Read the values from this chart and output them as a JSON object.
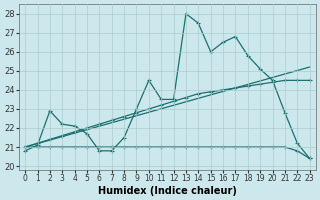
{
  "xlabel": "Humidex (Indice chaleur)",
  "bg_color": "#cce8ec",
  "grid_color": "#aacccc",
  "line_color": "#1a7070",
  "x_ticks": [
    0,
    1,
    2,
    3,
    4,
    5,
    6,
    7,
    8,
    9,
    10,
    11,
    12,
    13,
    14,
    15,
    16,
    17,
    18,
    19,
    20,
    21,
    22,
    23
  ],
  "ylim": [
    19.8,
    28.5
  ],
  "xlim": [
    -0.5,
    23.5
  ],
  "y_ticks": [
    20,
    21,
    22,
    23,
    24,
    25,
    26,
    27,
    28
  ],
  "series1_x": [
    0,
    1,
    2,
    3,
    4,
    5,
    6,
    7,
    8,
    9,
    10,
    11,
    12,
    13,
    14,
    15,
    16,
    17,
    18,
    19,
    20,
    21,
    22,
    23
  ],
  "series1_y": [
    20.8,
    21.1,
    22.9,
    22.2,
    22.1,
    21.7,
    20.8,
    20.8,
    21.5,
    23.0,
    24.5,
    23.5,
    23.5,
    28.0,
    27.5,
    26.0,
    26.5,
    26.8,
    25.8,
    25.1,
    24.5,
    22.8,
    21.2,
    20.4
  ],
  "series2_x": [
    0,
    1,
    2,
    3,
    4,
    5,
    6,
    7,
    8,
    9,
    10,
    11,
    12,
    13,
    14,
    15,
    16,
    17,
    18,
    19,
    20,
    21,
    22,
    23
  ],
  "series2_y": [
    21.0,
    21.0,
    21.0,
    21.0,
    21.0,
    21.0,
    21.0,
    21.0,
    21.0,
    21.0,
    21.0,
    21.0,
    21.0,
    21.0,
    21.0,
    21.0,
    21.0,
    21.0,
    21.0,
    21.0,
    21.0,
    21.0,
    20.8,
    20.4
  ],
  "series3_x": [
    0,
    23
  ],
  "series3_y": [
    21.0,
    25.2
  ],
  "series4_x": [
    0,
    1,
    2,
    3,
    4,
    5,
    6,
    7,
    8,
    9,
    10,
    11,
    12,
    13,
    14,
    15,
    16,
    17,
    18,
    19,
    20,
    21,
    22,
    23
  ],
  "series4_y": [
    21.0,
    21.2,
    21.4,
    21.6,
    21.8,
    22.0,
    22.2,
    22.4,
    22.6,
    22.8,
    23.0,
    23.2,
    23.4,
    23.6,
    23.8,
    23.9,
    24.0,
    24.1,
    24.2,
    24.3,
    24.4,
    24.5,
    24.5,
    24.5
  ]
}
